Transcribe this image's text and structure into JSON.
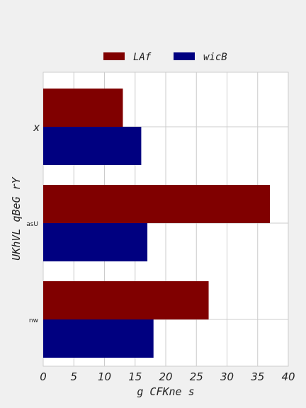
{
  "chart_data": {
    "type": "bar",
    "orientation": "horizontal",
    "categories": [
      "x",
      "asU",
      "nw"
    ],
    "series": [
      {
        "name": "LAf",
        "values": [
          13,
          37,
          27
        ],
        "color": "#800000"
      },
      {
        "name": "wicB",
        "values": [
          16,
          17,
          18
        ],
        "color": "#000080"
      }
    ],
    "xlabel": "g CFKne s",
    "ylabel": "UKhVL qBeG rY",
    "xlim": [
      0,
      40
    ],
    "xticks": [
      "0",
      "5",
      "10",
      "15",
      "20",
      "25",
      "30",
      "35",
      "40"
    ],
    "grid": true,
    "legend_position": "top-center"
  }
}
